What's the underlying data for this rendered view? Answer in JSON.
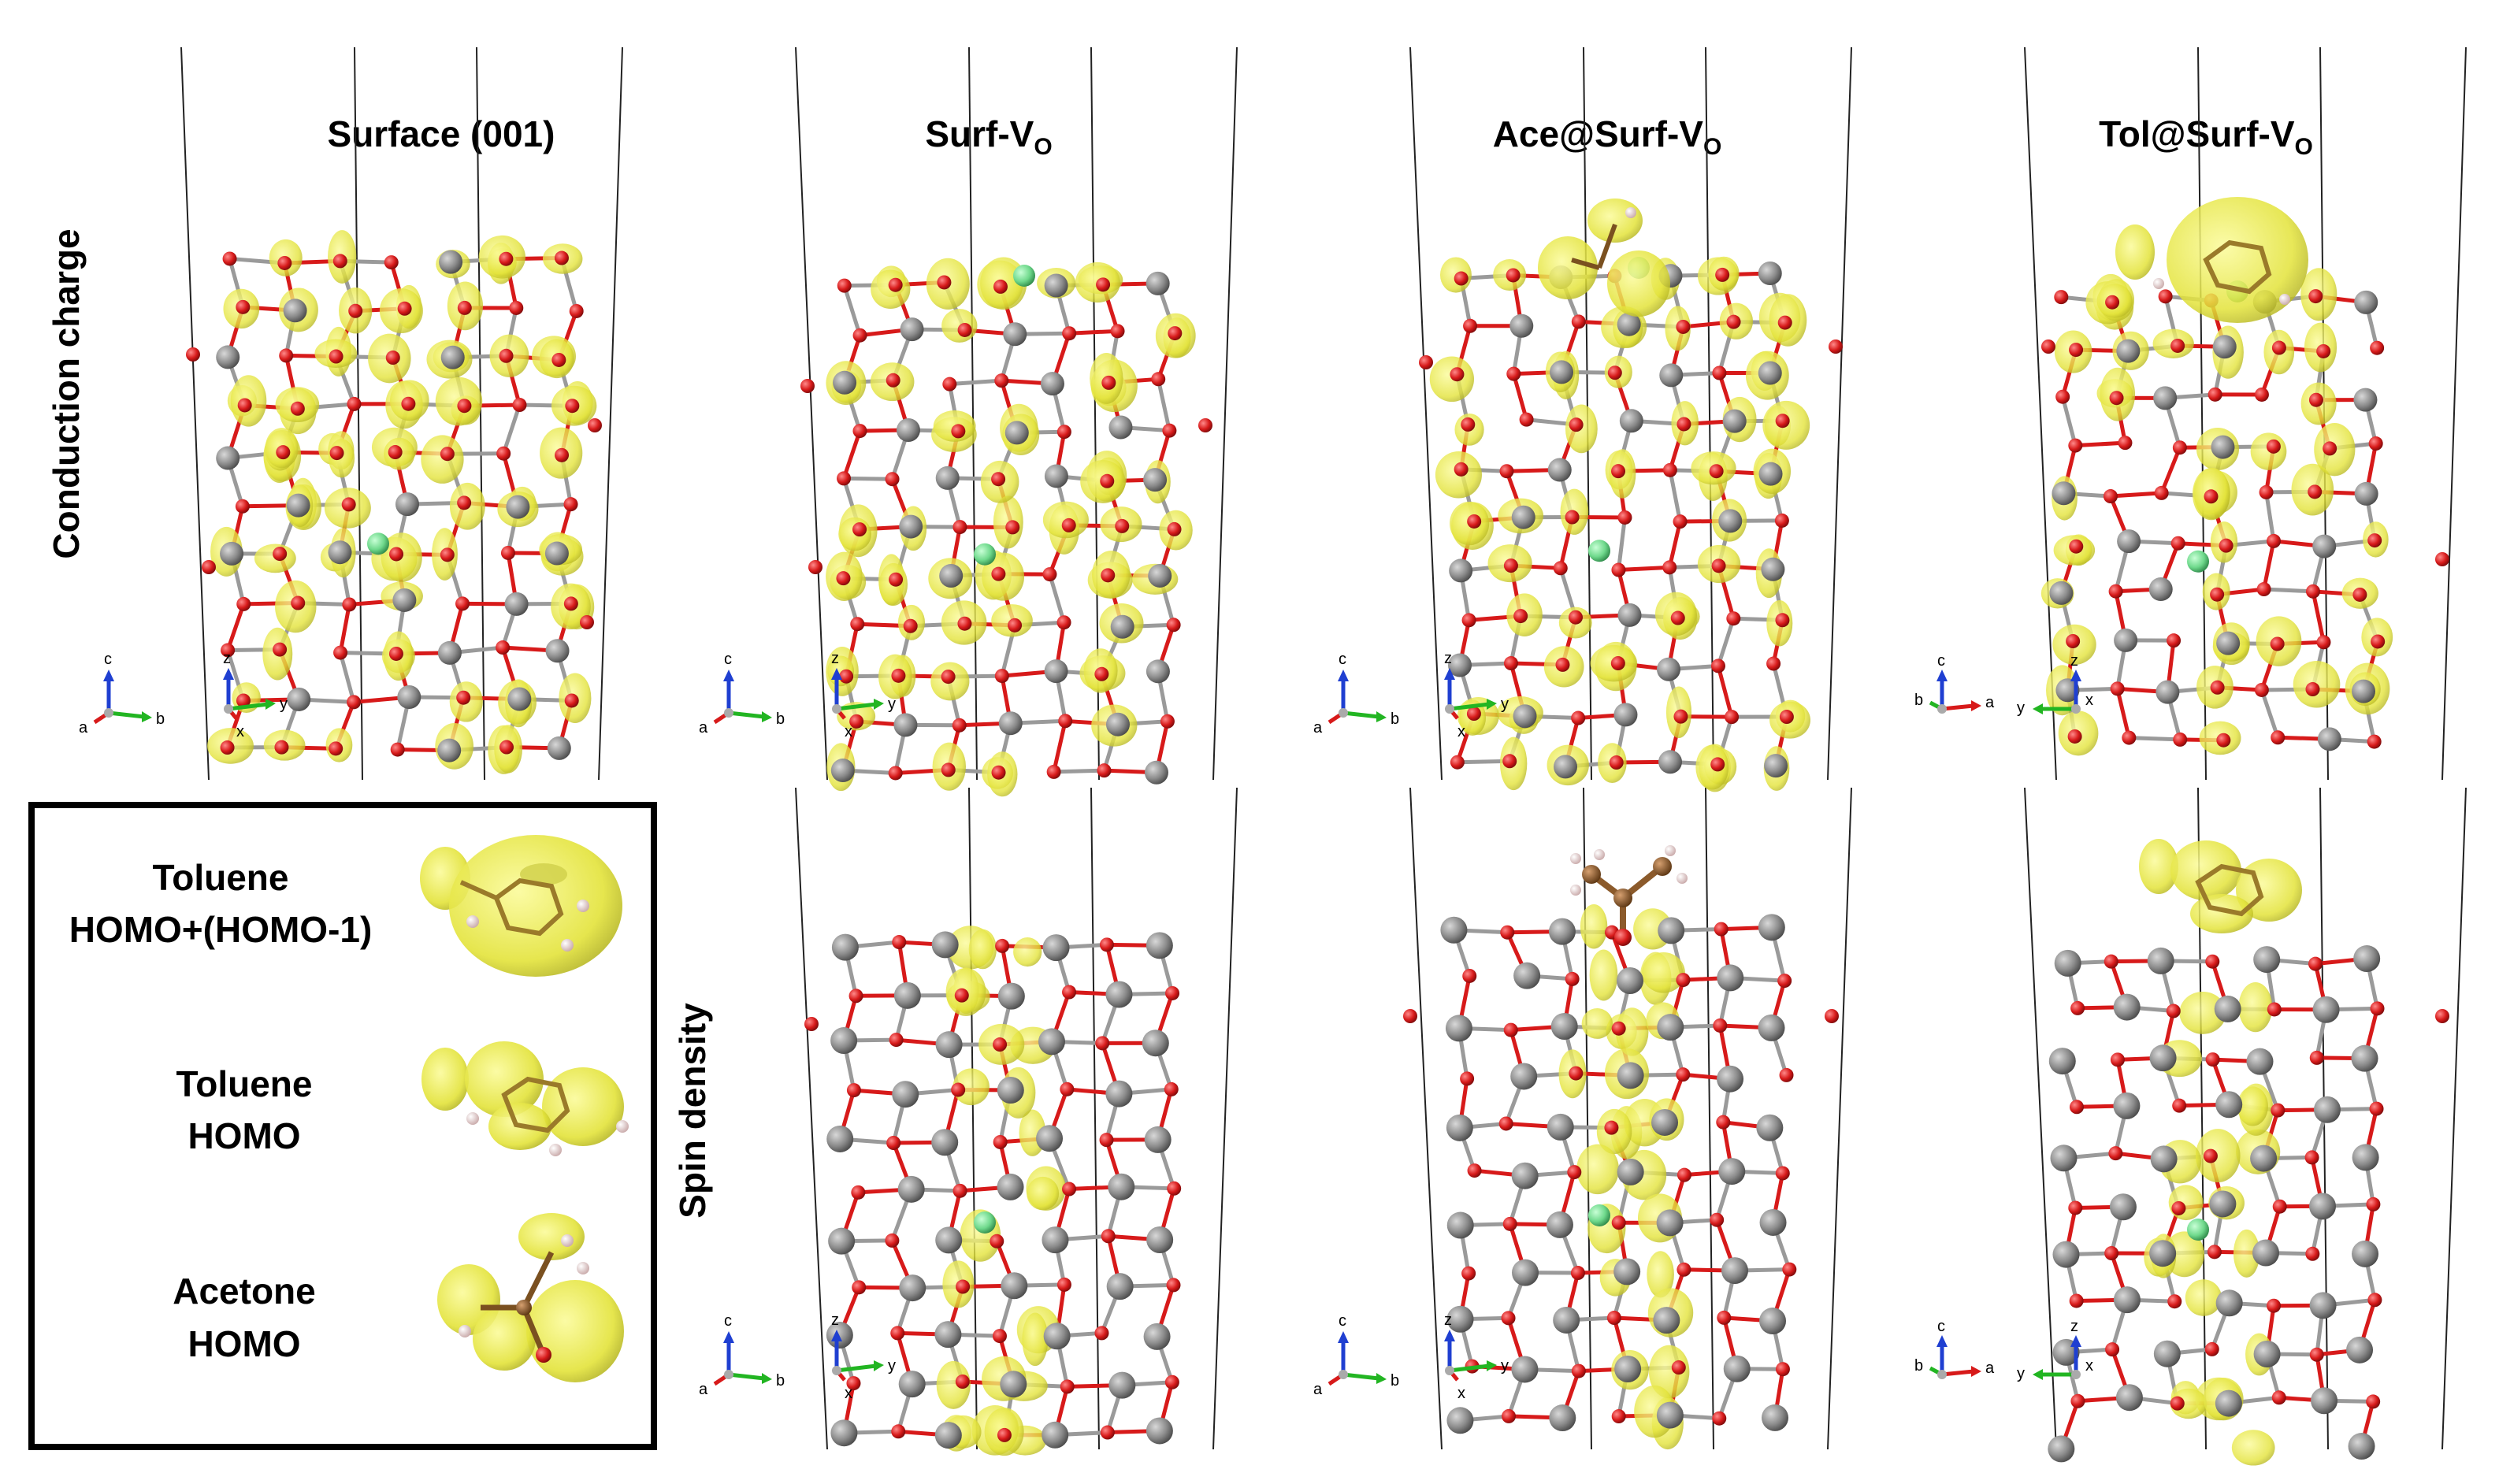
{
  "columns": [
    {
      "title": "Surface (001)",
      "sub": ""
    },
    {
      "title": "Surf-V",
      "sub": "O"
    },
    {
      "title": "Ace@Surf-V",
      "sub": "O"
    },
    {
      "title": "Tol@Surf-V",
      "sub": "O"
    }
  ],
  "rows": {
    "top": "Conduction charge",
    "bottom": "Spin density"
  },
  "legend": [
    {
      "line1": "Toluene",
      "line2": "HOMO+(HOMO-1)"
    },
    {
      "line1": "Toluene",
      "line2": "HOMO"
    },
    {
      "line1": "Acetone",
      "line2": "HOMO"
    }
  ],
  "axes": {
    "c": "c",
    "a": "a",
    "b": "b",
    "x": "x",
    "y": "y",
    "z": "z"
  },
  "colors": {
    "oxygen": "#d71a1a",
    "metal": "#8a8a8a",
    "dopant": "#6fd98c",
    "isosurface": "#e6e63c",
    "carbon": "#8b5a2b",
    "hydrogen": "#f2d9d9",
    "axis_blue": "#1f3fd1",
    "axis_green": "#22b522",
    "axis_red": "#d71a1a"
  }
}
